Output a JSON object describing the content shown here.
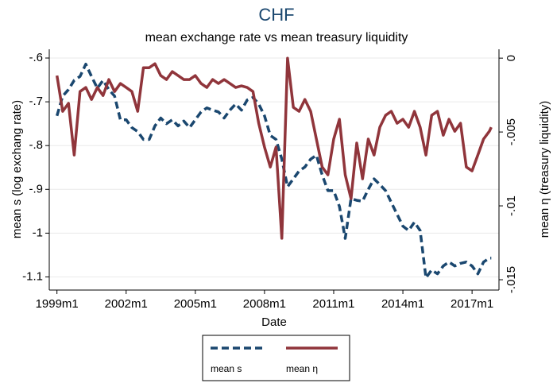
{
  "chart_data": {
    "type": "line",
    "title": "CHF",
    "subtitle": "mean exchange rate vs mean treasury liquidity",
    "x_label": "Date",
    "y_label": "mean s (log exchang rate)",
    "y2_label": "mean η  (treasury liquidity)",
    "x": [
      "1999m1",
      "1999m4",
      "1999m7",
      "1999m10",
      "2000m1",
      "2000m4",
      "2000m7",
      "2000m10",
      "2001m1",
      "2001m4",
      "2001m7",
      "2001m10",
      "2002m1",
      "2002m4",
      "2002m7",
      "2002m10",
      "2003m1",
      "2003m4",
      "2003m7",
      "2003m10",
      "2004m1",
      "2004m4",
      "2004m7",
      "2004m10",
      "2005m1",
      "2005m4",
      "2005m7",
      "2005m10",
      "2006m1",
      "2006m4",
      "2006m7",
      "2006m10",
      "2007m1",
      "2007m4",
      "2007m7",
      "2007m10",
      "2008m1",
      "2008m4",
      "2008m7",
      "2008m10",
      "2009m1",
      "2009m4",
      "2009m7",
      "2009m10",
      "2010m1",
      "2010m4",
      "2010m7",
      "2010m10",
      "2011m1",
      "2011m4",
      "2011m7",
      "2011m10",
      "2012m1",
      "2012m4",
      "2012m7",
      "2012m10",
      "2013m1",
      "2013m4",
      "2013m7",
      "2013m10",
      "2014m1",
      "2014m4",
      "2014m7",
      "2014m10",
      "2015m1",
      "2015m4",
      "2015m7",
      "2015m10",
      "2016m1",
      "2016m4",
      "2016m7",
      "2016m10",
      "2017m1",
      "2017m4",
      "2017m7",
      "2017m10",
      "2017m11"
    ],
    "series": [
      {
        "name": "mean s",
        "color": "#1a476f",
        "dash": true,
        "values": [
          -0.732,
          -0.687,
          -0.672,
          -0.651,
          -0.642,
          -0.614,
          -0.642,
          -0.669,
          -0.651,
          -0.672,
          -0.687,
          -0.741,
          -0.741,
          -0.759,
          -0.768,
          -0.786,
          -0.786,
          -0.755,
          -0.737,
          -0.75,
          -0.741,
          -0.755,
          -0.744,
          -0.759,
          -0.741,
          -0.723,
          -0.714,
          -0.719,
          -0.723,
          -0.737,
          -0.719,
          -0.705,
          -0.719,
          -0.696,
          -0.69,
          -0.705,
          -0.732,
          -0.777,
          -0.786,
          -0.831,
          -0.894,
          -0.876,
          -0.858,
          -0.849,
          -0.831,
          -0.822,
          -0.867,
          -0.903,
          -0.903,
          -0.939,
          -1.012,
          -0.921,
          -0.925,
          -0.927,
          -0.9,
          -0.876,
          -0.889,
          -0.903,
          -0.93,
          -0.957,
          -0.984,
          -0.994,
          -0.975,
          -0.994,
          -1.102,
          -1.084,
          -1.093,
          -1.075,
          -1.066,
          -1.075,
          -1.069,
          -1.066,
          -1.075,
          -1.093,
          -1.066,
          -1.057,
          -1.057
        ]
      },
      {
        "name": "mean η",
        "color": "#90353b",
        "axis": "y2",
        "values": [
          -0.00118,
          -0.0036,
          -0.00306,
          -0.00656,
          -0.00226,
          -0.00199,
          -0.0028,
          -0.00199,
          -0.00253,
          -0.00145,
          -0.00226,
          -0.00172,
          -0.00199,
          -0.00226,
          -0.0036,
          -0.00065,
          -0.00065,
          -0.00038,
          -0.00118,
          -0.00145,
          -0.00091,
          -0.00118,
          -0.00145,
          -0.00145,
          -0.00118,
          -0.00172,
          -0.00199,
          -0.00145,
          -0.00172,
          -0.00145,
          -0.00172,
          -0.00199,
          -0.00188,
          -0.00199,
          -0.00226,
          -0.00441,
          -0.00602,
          -0.00737,
          -0.00602,
          -0.0122,
          0,
          -0.00333,
          -0.0036,
          -0.0028,
          -0.0036,
          -0.00548,
          -0.00737,
          -0.0079,
          -0.00548,
          -0.00414,
          -0.0079,
          -0.00952,
          -0.00575,
          -0.00817,
          -0.00548,
          -0.00656,
          -0.00468,
          -0.00387,
          -0.0036,
          -0.00441,
          -0.00414,
          -0.00468,
          -0.0036,
          -0.00468,
          -0.00656,
          -0.00387,
          -0.0036,
          -0.00522,
          -0.00414,
          -0.00495,
          -0.00441,
          -0.00737,
          -0.00763,
          -0.00656,
          -0.00548,
          -0.00495,
          -0.00468
        ]
      }
    ],
    "xlim": [
      "1998m9",
      "2018m3"
    ],
    "xticks": [
      "1999m1",
      "2002m1",
      "2005m1",
      "2008m1",
      "2011m1",
      "2014m1",
      "2017m1"
    ],
    "ylim": [
      -1.13,
      -0.58
    ],
    "yticks": [
      {
        "value": -0.6,
        "label": "-.6"
      },
      {
        "value": -0.7,
        "label": "-.7"
      },
      {
        "value": -0.8,
        "label": "-.8"
      },
      {
        "value": -0.9,
        "label": "-.9"
      },
      -1,
      -1.1
    ],
    "y2lim": [
      -0.0157,
      0.0006
    ],
    "y2ticks": [
      0,
      {
        "value": -0.005,
        "label": "-.005"
      },
      {
        "value": -0.01,
        "label": "-.01"
      },
      {
        "value": -0.015,
        "label": "-.015"
      }
    ],
    "grid": true,
    "legend": "bottom"
  }
}
